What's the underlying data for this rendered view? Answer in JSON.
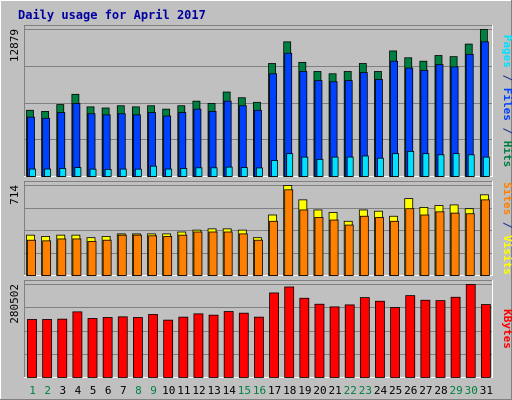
{
  "chart_data": {
    "type": "bar",
    "title": "Daily usage for April 2017",
    "categories": [
      "1",
      "2",
      "3",
      "4",
      "5",
      "6",
      "7",
      "8",
      "9",
      "10",
      "11",
      "12",
      "13",
      "14",
      "15",
      "16",
      "17",
      "18",
      "19",
      "20",
      "21",
      "22",
      "23",
      "24",
      "25",
      "26",
      "27",
      "28",
      "29",
      "30",
      "31"
    ],
    "weekend_days": [
      "1",
      "2",
      "8",
      "9",
      "15",
      "16",
      "22",
      "23",
      "29",
      "30"
    ],
    "panels": [
      {
        "id": "hits-files-pages",
        "max_label": "12879",
        "ymax": 12879,
        "axis_labels": [
          {
            "text": "Pages",
            "color": "#00e0ff"
          },
          {
            "text": " / ",
            "color": "#1a2a90"
          },
          {
            "text": "Files",
            "color": "#0040ff"
          },
          {
            "text": " / ",
            "color": "#1a2a90"
          },
          {
            "text": "Hits",
            "color": "#008040"
          }
        ],
        "series": [
          {
            "name": "Hits",
            "color": "#008040",
            "values": [
              5800,
              5700,
              6300,
              7200,
              6100,
              6000,
              6200,
              6100,
              6200,
              5900,
              6200,
              6600,
              6400,
              7400,
              6900,
              6500,
              9900,
              11800,
              10000,
              9200,
              9000,
              9200,
              9900,
              9200,
              11000,
              10400,
              10100,
              10600,
              10500,
              11600,
              12879
            ]
          },
          {
            "name": "Files",
            "color": "#0040ff",
            "values": [
              5200,
              5100,
              5600,
              6400,
              5500,
              5400,
              5500,
              5400,
              5600,
              5300,
              5600,
              5900,
              5700,
              6600,
              6200,
              5800,
              9000,
              10800,
              9200,
              8400,
              8300,
              8400,
              9100,
              8500,
              10100,
              9500,
              9300,
              9800,
              9600,
              10700,
              11800
            ]
          },
          {
            "name": "Pages",
            "color": "#00e0ff",
            "values": [
              650,
              650,
              700,
              780,
              640,
              620,
              650,
              640,
              900,
              650,
              700,
              760,
              760,
              820,
              780,
              750,
              1400,
              2000,
              1700,
              1500,
              1700,
              1700,
              1800,
              1600,
              2000,
              2200,
              2000,
              1900,
              2000,
              1900,
              1700
            ]
          }
        ]
      },
      {
        "id": "visits-sites",
        "max_label": "714",
        "ymax": 714,
        "axis_labels": [
          {
            "text": "Sites",
            "color": "#ff8000"
          },
          {
            "text": " / ",
            "color": "#1a2a90"
          },
          {
            "text": "Visits",
            "color": "#ffff00"
          }
        ],
        "series": [
          {
            "name": "Visits",
            "color": "#ffff00",
            "values": [
              320,
              310,
              320,
              320,
              300,
              310,
              330,
              330,
              330,
              330,
              345,
              360,
              370,
              370,
              360,
              300,
              480,
              714,
              600,
              520,
              500,
              430,
              520,
              510,
              470,
              610,
              540,
              555,
              560,
              530,
              640
            ]
          },
          {
            "name": "Sites",
            "color": "#ff8000",
            "values": [
              280,
              275,
              290,
              290,
              270,
              280,
              320,
              320,
              315,
              310,
              320,
              345,
              345,
              345,
              330,
              280,
              430,
              680,
              520,
              460,
              440,
              400,
              470,
              460,
              430,
              530,
              480,
              505,
              495,
              490,
              600
            ]
          }
        ]
      },
      {
        "id": "kbytes",
        "max_label": "280502",
        "ymax": 280502,
        "axis_labels": [
          {
            "text": "KBytes",
            "color": "#ff0000"
          }
        ],
        "series": [
          {
            "name": "KBytes",
            "color": "#ff0000",
            "values": [
              175000,
              175000,
              176000,
              198000,
              178000,
              181000,
              183000,
              181000,
              190000,
              173000,
              182000,
              192000,
              188000,
              199000,
              194000,
              182000,
              255000,
              273000,
              239000,
              221000,
              213000,
              219000,
              241000,
              230000,
              211000,
              247000,
              233000,
              232000,
              242000,
              280502,
              220000
            ]
          }
        ]
      }
    ]
  }
}
